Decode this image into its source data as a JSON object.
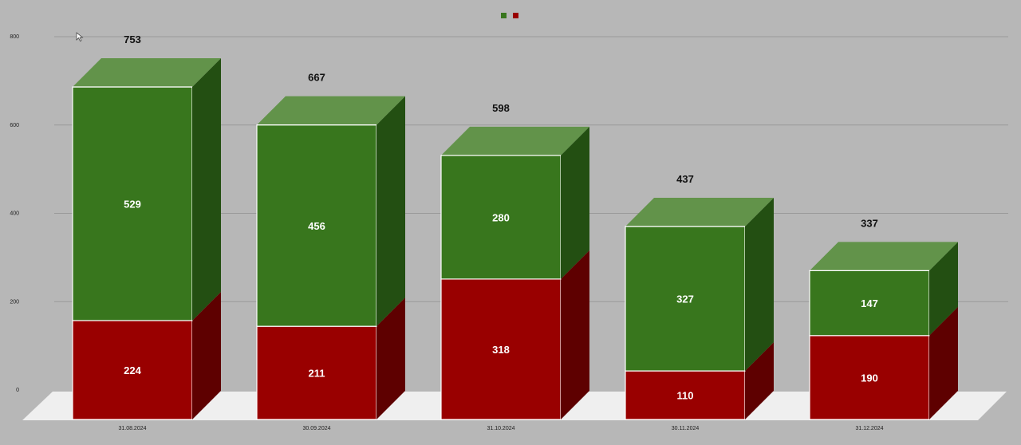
{
  "chart_data": {
    "type": "bar",
    "stacked": true,
    "three_d": true,
    "categories": [
      "31.08.2024",
      "30.09.2024",
      "31.10.2024",
      "30.11.2024",
      "31.12.2024"
    ],
    "series": [
      {
        "values": [
          224,
          211,
          318,
          110,
          190
        ],
        "color": "#990000",
        "side_color": "#5e0000",
        "top_color": "#b84040"
      },
      {
        "values": [
          529,
          456,
          280,
          327,
          147
        ],
        "color": "#38761d",
        "side_color": "#234f12",
        "top_color": "#62934a"
      }
    ],
    "totals": [
      753,
      667,
      598,
      437,
      337
    ],
    "y_ticks": [
      "0",
      "200",
      "400",
      "600",
      "800"
    ],
    "ylim": [
      0,
      800
    ],
    "grid": true,
    "legend": {
      "position": "top-center",
      "colors": [
        "#38761d",
        "#990000"
      ]
    },
    "background": "#b7b7b7",
    "floor_color": "#efefef"
  }
}
